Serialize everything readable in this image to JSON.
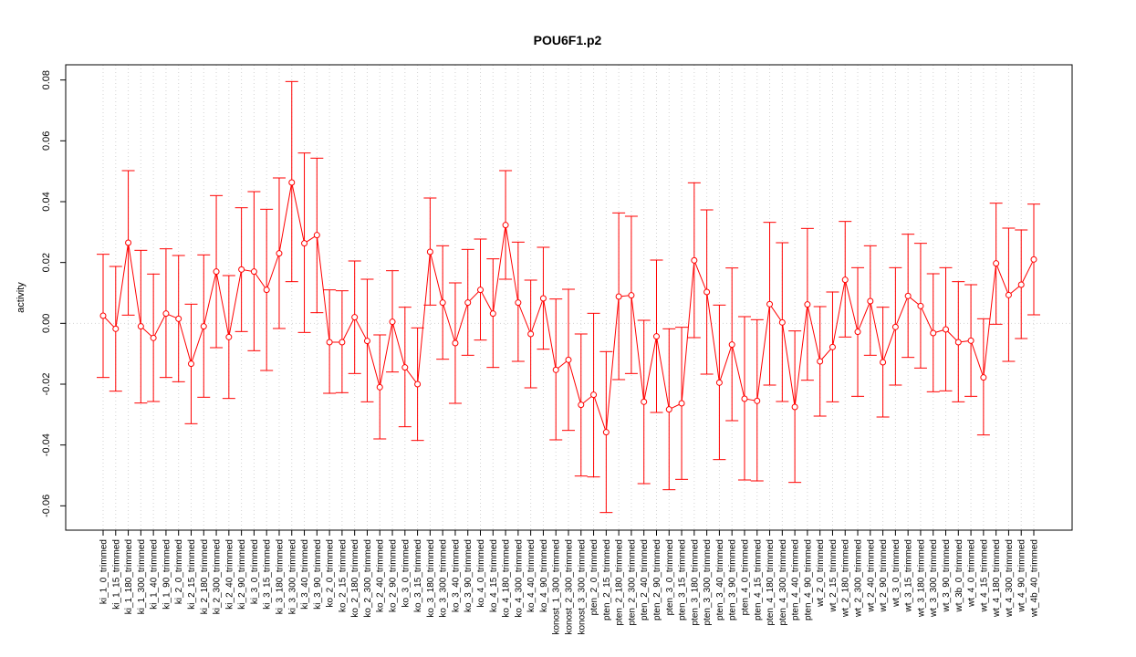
{
  "chart_data": {
    "type": "line",
    "title": "POU6F1.p2",
    "xlabel": "",
    "ylabel": "activity",
    "ylim": [
      -0.068,
      0.085
    ],
    "yticks": [
      -0.06,
      -0.04,
      -0.02,
      0.0,
      0.02,
      0.04,
      0.06,
      0.08
    ],
    "ytick_labels": [
      "-0.06",
      "-0.04",
      "-0.02",
      "0.00",
      "0.02",
      "0.04",
      "0.06",
      "0.08"
    ],
    "grid": true,
    "color": "#ff0000",
    "grid_color": "#d3d3d3",
    "categories": [
      "ki_1_0_trimmed",
      "ki_1_15_trimmed",
      "ki_1_180_trimmed",
      "ki_1_300_trimmed",
      "ki_1_40_trimmed",
      "ki_1_90_trimmed",
      "ki_2_0_trimmed",
      "ki_2_15_trimmed",
      "ki_2_180_trimmed",
      "ki_2_300_trimmed",
      "ki_2_40_trimmed",
      "ki_2_90_trimmed",
      "ki_3_0_trimmed",
      "ki_3_15_trimmed",
      "ki_3_180_trimmed",
      "ki_3_300_trimmed",
      "ki_3_40_trimmed",
      "ki_3_90_trimmed",
      "ko_2_0_trimmed",
      "ko_2_15_trimmed",
      "ko_2_180_trimmed",
      "ko_2_300_trimmed",
      "ko_2_40_trimmed",
      "ko_2_90_trimmed",
      "ko_3_0_trimmed",
      "ko_3_15_trimmed",
      "ko_3_180_trimmed",
      "ko_3_300_trimmed",
      "ko_3_40_trimmed",
      "ko_3_90_trimmed",
      "ko_4_0_trimmed",
      "ko_4_15_trimmed",
      "ko_4_180_trimmed",
      "ko_4_300_trimmed",
      "ko_4_40_trimmed",
      "ko_4_90_trimmed",
      "konost_1_300_trimmed",
      "konost_2_300_trimmed",
      "konost_3_300_trimmed",
      "pten_2_0_trimmed",
      "pten_2_15_trimmed",
      "pten_2_180_trimmed",
      "pten_2_300_trimmed",
      "pten_2_40_trimmed",
      "pten_2_90_trimmed",
      "pten_3_0_trimmed",
      "pten_3_15_trimmed",
      "pten_3_180_trimmed",
      "pten_3_300_trimmed",
      "pten_3_40_trimmed",
      "pten_3_90_trimmed",
      "pten_4_0_trimmed",
      "pten_4_15_trimmed",
      "pten_4_180_trimmed",
      "pten_4_300_trimmed",
      "pten_4_40_trimmed",
      "pten_4_90_trimmed",
      "wt_2_0_trimmed",
      "wt_2_15_trimmed",
      "wt_2_180_trimmed",
      "wt_2_300_trimmed",
      "wt_2_40_trimmed",
      "wt_2_90_trimmed",
      "wt_3_0_trimmed",
      "wt_3_15_trimmed",
      "wt_3_180_trimmed",
      "wt_3_300_trimmed",
      "wt_3_90_trimmed",
      "wt_3b_0_trimmed",
      "wt_4_0_trimmed",
      "wt_4_15_trimmed",
      "wt_4_180_trimmed",
      "wt_4_300_trimmed",
      "wt_4_90_trimmed",
      "wt_4b_40_trimmed"
    ],
    "values": [
      0.0025,
      -0.0018,
      0.0265,
      -0.001,
      -0.0048,
      0.0032,
      0.0015,
      -0.0133,
      -0.001,
      0.017,
      -0.0045,
      0.0177,
      0.017,
      0.011,
      0.023,
      0.0463,
      0.0263,
      0.029,
      -0.0062,
      -0.0062,
      0.002,
      -0.0058,
      -0.021,
      0.0005,
      -0.0145,
      -0.02,
      0.0235,
      0.0068,
      -0.0065,
      0.0068,
      0.011,
      0.0032,
      0.0323,
      0.0068,
      -0.0035,
      0.0082,
      -0.0153,
      -0.012,
      -0.0268,
      -0.0235,
      -0.0358,
      0.0088,
      0.0092,
      -0.0258,
      -0.0043,
      -0.0283,
      -0.0263,
      0.0207,
      0.0103,
      -0.0195,
      -0.007,
      -0.0248,
      -0.0255,
      0.0063,
      0.0003,
      -0.0275,
      0.0062,
      -0.0125,
      -0.0078,
      0.0143,
      -0.0028,
      0.0073,
      -0.0128,
      -0.0012,
      0.009,
      0.0057,
      -0.0032,
      -0.002,
      -0.0062,
      -0.0057,
      -0.0178,
      0.0197,
      0.0093,
      0.0127,
      0.021
    ],
    "upper": [
      0.0227,
      0.0187,
      0.0502,
      0.024,
      0.0162,
      0.0245,
      0.0223,
      0.0063,
      0.0225,
      0.042,
      0.0157,
      0.038,
      0.0433,
      0.0375,
      0.0478,
      0.0795,
      0.056,
      0.0543,
      0.011,
      0.0107,
      0.0205,
      0.0145,
      -0.0038,
      0.0173,
      0.0053,
      -0.0015,
      0.0412,
      0.0255,
      0.0133,
      0.0243,
      0.0277,
      0.0212,
      0.0502,
      0.0267,
      0.0142,
      0.025,
      0.008,
      0.0112,
      -0.0035,
      0.0033,
      -0.0093,
      0.0363,
      0.0352,
      0.001,
      0.0208,
      -0.0018,
      -0.0013,
      0.0462,
      0.0373,
      0.006,
      0.0182,
      0.0022,
      0.0012,
      0.0332,
      0.0265,
      -0.0025,
      0.0312,
      0.0055,
      0.0103,
      0.0335,
      0.0183,
      0.0255,
      0.0053,
      0.0183,
      0.0293,
      0.0263,
      0.0163,
      0.0183,
      0.0137,
      0.0127,
      0.0015,
      0.0395,
      0.0313,
      0.0307,
      0.0392
    ],
    "lower": [
      -0.0178,
      -0.0223,
      0.0027,
      -0.0262,
      -0.0257,
      -0.0178,
      -0.0192,
      -0.033,
      -0.0243,
      -0.008,
      -0.0247,
      -0.0027,
      -0.009,
      -0.0155,
      -0.0017,
      0.0137,
      -0.003,
      0.0035,
      -0.023,
      -0.0228,
      -0.0165,
      -0.0258,
      -0.038,
      -0.016,
      -0.034,
      -0.0385,
      0.006,
      -0.0118,
      -0.0263,
      -0.0105,
      -0.0055,
      -0.0145,
      0.0145,
      -0.0125,
      -0.0212,
      -0.0085,
      -0.0383,
      -0.0352,
      -0.0502,
      -0.0505,
      -0.0622,
      -0.0185,
      -0.0165,
      -0.0527,
      -0.0293,
      -0.0547,
      -0.0513,
      -0.0047,
      -0.0167,
      -0.0448,
      -0.032,
      -0.0515,
      -0.0518,
      -0.0203,
      -0.0257,
      -0.0523,
      -0.0187,
      -0.0305,
      -0.0258,
      -0.0045,
      -0.024,
      -0.0105,
      -0.0308,
      -0.0203,
      -0.0112,
      -0.0147,
      -0.0225,
      -0.0222,
      -0.0258,
      -0.024,
      -0.0367,
      -0.0003,
      -0.0125,
      -0.005,
      0.0028
    ]
  }
}
